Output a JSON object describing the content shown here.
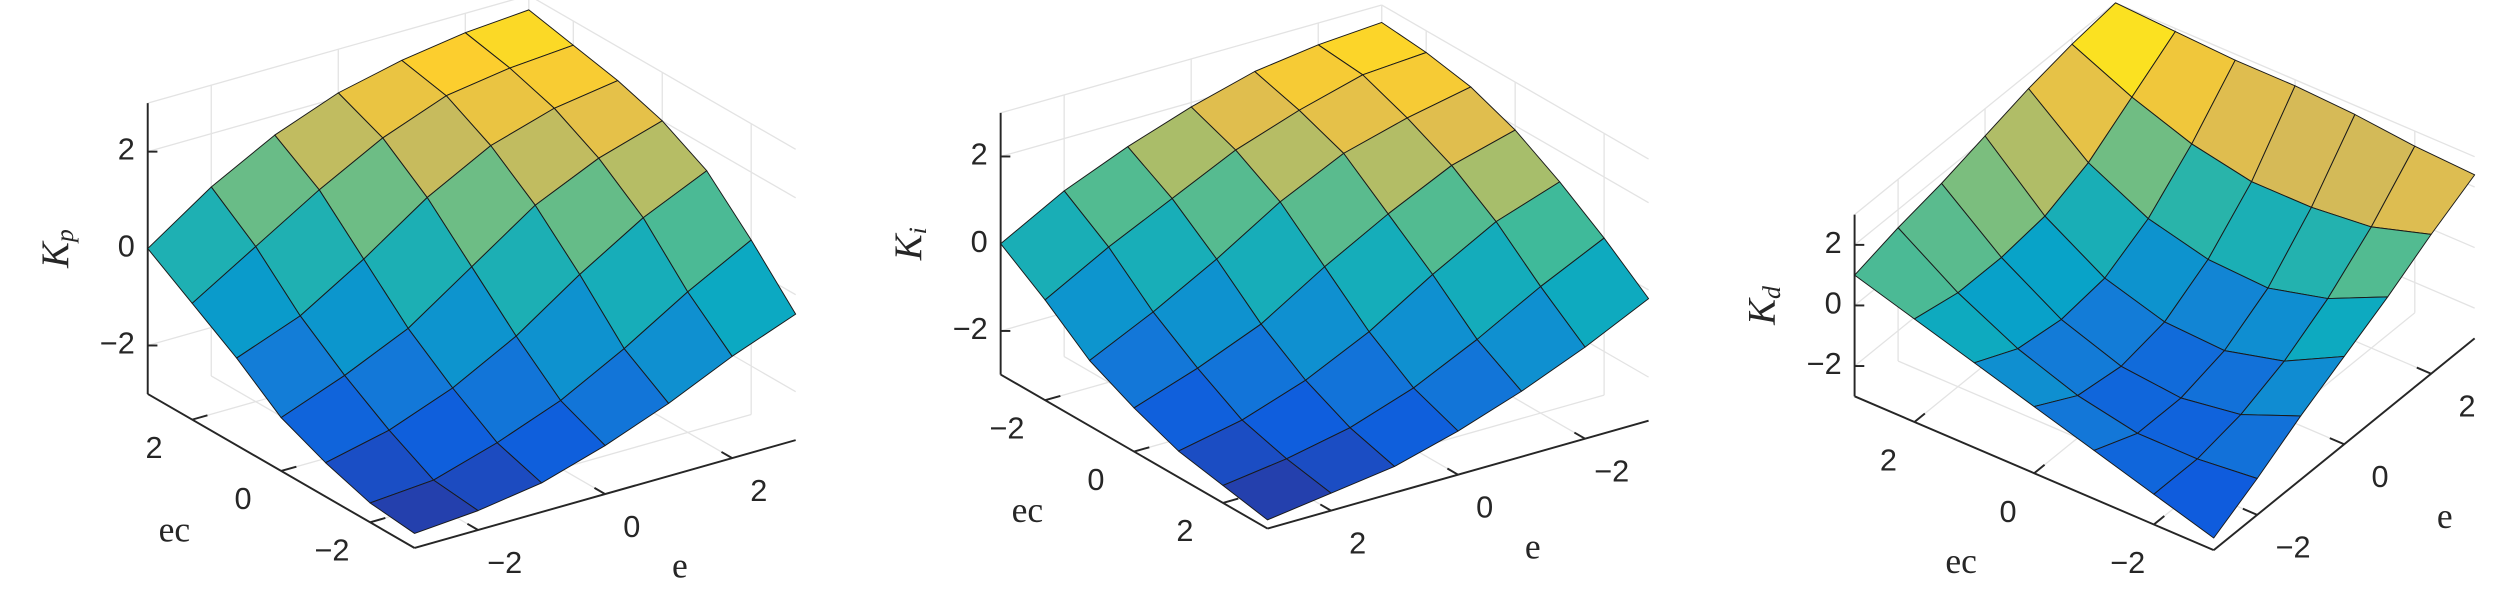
{
  "chart_data": [
    {
      "type": "surface",
      "xlabel": "e",
      "ylabel": "ec",
      "zlabel": "Kp",
      "colormap": "parula",
      "grid": true,
      "x": [
        -3,
        -2,
        -1,
        0,
        1,
        2,
        3
      ],
      "y": [
        -3,
        -2,
        -1,
        0,
        1,
        2,
        3
      ],
      "z": [
        [
          -2.7,
          -2.6,
          -2.4,
          -2.0,
          -1.5,
          -0.9,
          -0.4
        ],
        [
          -2.6,
          -2.5,
          -2.1,
          -1.6,
          -0.9,
          -0.1,
          0.6
        ],
        [
          -2.3,
          -2.0,
          -1.5,
          -0.8,
          0.1,
          0.9,
          1.5
        ],
        [
          -1.9,
          -1.4,
          -0.8,
          0.1,
          1.0,
          1.6,
          2.0
        ],
        [
          -1.2,
          -0.7,
          0.1,
          1.0,
          1.7,
          2.1,
          2.3
        ],
        [
          -0.6,
          0.2,
          1.0,
          1.7,
          2.2,
          2.4,
          2.5
        ],
        [
          0.0,
          0.9,
          1.6,
          2.1,
          2.4,
          2.6,
          2.7
        ]
      ],
      "xlim": [
        -3,
        3
      ],
      "ylim": [
        -3,
        3
      ],
      "zlim": [
        -3,
        3
      ],
      "xticks": [
        {
          "value": -2,
          "label": "−2"
        },
        0,
        2
      ],
      "yticks": [
        {
          "value": -2,
          "label": "−2"
        },
        0,
        2
      ],
      "zticks": [
        {
          "value": -2,
          "label": "−2"
        },
        0,
        2
      ]
    },
    {
      "type": "surface",
      "xlabel": "e",
      "ylabel": "ec",
      "zlabel": "Ki",
      "colormap": "parula",
      "grid": true,
      "x": [
        -3,
        -2,
        -1,
        0,
        1,
        2,
        3
      ],
      "y": [
        -3,
        -2,
        -1,
        0,
        1,
        2,
        3
      ],
      "z": [
        [
          2.6,
          2.5,
          2.3,
          1.9,
          1.4,
          0.8,
          0.0
        ],
        [
          2.5,
          2.4,
          2.0,
          1.5,
          0.8,
          0.1,
          -0.7
        ],
        [
          2.3,
          2.0,
          1.6,
          0.9,
          0.0,
          -0.8,
          -1.5
        ],
        [
          1.9,
          1.5,
          0.8,
          0.0,
          -0.9,
          -1.5,
          -2.0
        ],
        [
          1.3,
          0.8,
          0.0,
          -0.9,
          -1.6,
          -2.1,
          -2.4
        ],
        [
          0.6,
          -0.1,
          -0.9,
          -1.6,
          -2.1,
          -2.4,
          -2.6
        ],
        [
          -0.2,
          -0.9,
          -1.5,
          -2.0,
          -2.4,
          -2.6,
          -2.8
        ]
      ],
      "xlim": [
        -3,
        3
      ],
      "ylim": [
        -3,
        3
      ],
      "zlim": [
        -3,
        3
      ],
      "xticks": [
        {
          "value": -2,
          "label": "−2"
        },
        0,
        2
      ],
      "yticks": [
        {
          "value": -2,
          "label": "−2"
        },
        0,
        2
      ],
      "zticks": [
        {
          "value": -2,
          "label": "−2"
        },
        0,
        2
      ]
    },
    {
      "type": "surface",
      "xlabel": "e",
      "ylabel": "ec",
      "zlabel": "Kd",
      "colormap": "parula",
      "grid": true,
      "x": [
        -3,
        -2,
        -1,
        0,
        1,
        2,
        3
      ],
      "y": [
        -3,
        -2,
        -1,
        0,
        1,
        2,
        3
      ],
      "z": [
        [
          -2.6,
          -1.8,
          -0.9,
          -0.1,
          0.7,
          1.6,
          2.4
        ],
        [
          -2.0,
          -2.0,
          -1.7,
          -1.1,
          -0.2,
          1.0,
          2.5
        ],
        [
          -1.4,
          -2.0,
          -2.0,
          -1.6,
          -0.7,
          0.8,
          2.7
        ],
        [
          -0.8,
          -1.6,
          -1.8,
          -1.5,
          -0.6,
          0.8,
          2.8
        ],
        [
          -0.2,
          -0.9,
          -1.1,
          -0.9,
          -0.1,
          1.2,
          2.8
        ],
        [
          0.4,
          0.1,
          0.1,
          0.3,
          0.9,
          1.9,
          2.9
        ],
        [
          1.0,
          1.4,
          1.7,
          2.1,
          2.5,
          2.8,
          3.0
        ]
      ],
      "xlim": [
        -3,
        3
      ],
      "ylim": [
        -3,
        3
      ],
      "zlim": [
        -3,
        3
      ],
      "xticks": [
        {
          "value": -2,
          "label": "−2"
        },
        0,
        2
      ],
      "yticks": [
        {
          "value": -2,
          "label": "−2"
        },
        0,
        2
      ],
      "zticks": [
        {
          "value": -2,
          "label": "−2"
        },
        0,
        2
      ]
    }
  ]
}
